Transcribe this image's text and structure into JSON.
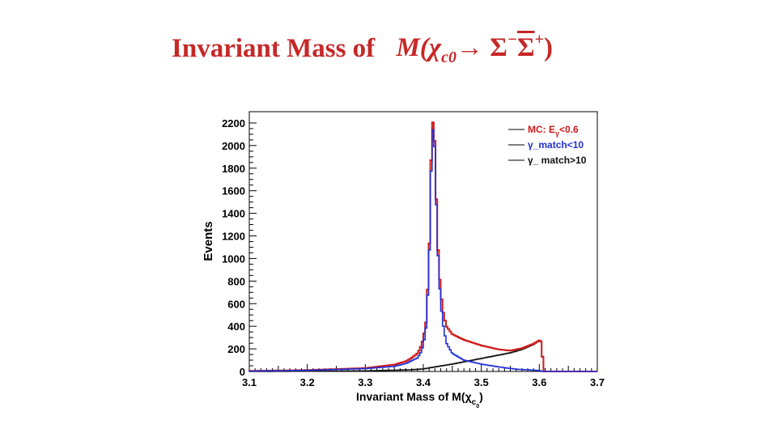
{
  "title": {
    "prefix": "Invariant  Mass of",
    "formula": {
      "M": "M",
      "open": "(",
      "chi": "χ",
      "sub_c": "c",
      "sub_0": "0",
      "arrow": "→ Σ",
      "minus": "−",
      "sigma_bar": "Σ",
      "plus": "+",
      "close": ")"
    }
  },
  "colors": {
    "title": "#c62828",
    "mc_red": "#d01c1c",
    "match_blue": "#1f2fd6",
    "unmatched_black": "#111111"
  },
  "chart_data": {
    "type": "line",
    "style": "step-histogram",
    "xlabel": "Invariant Mass of M(χ",
    "xlabel_sub": "c",
    "xlabel_subsub": "0",
    "xlabel_close": ")",
    "ylabel": "Events",
    "xlim": [
      3.1,
      3.7
    ],
    "ylim": [
      0,
      2300
    ],
    "xticks": [
      "3.1",
      "3.2",
      "3.3",
      "3.4",
      "3.5",
      "3.6",
      "3.7"
    ],
    "yticks": [
      "0",
      "200",
      "400",
      "600",
      "800",
      "1000",
      "1200",
      "1400",
      "1600",
      "1800",
      "2000",
      "2200"
    ],
    "legend": {
      "position": "top-right",
      "entries": [
        {
          "label": "MC:   E",
          "sub": "γ",
          "suffix": "<0.6",
          "color": "#d01c1c"
        },
        {
          "label": "γ_match<10",
          "color": "#1f2fd6"
        },
        {
          "label": "γ_ match>10",
          "color": "#111111"
        }
      ]
    },
    "series": [
      {
        "name": "MC: Eγ<0.6",
        "color": "#d01c1c",
        "points": [
          [
            3.1,
            5
          ],
          [
            3.2,
            12
          ],
          [
            3.3,
            30
          ],
          [
            3.35,
            60
          ],
          [
            3.37,
            90
          ],
          [
            3.38,
            120
          ],
          [
            3.39,
            160
          ],
          [
            3.395,
            210
          ],
          [
            3.4,
            290
          ],
          [
            3.405,
            450
          ],
          [
            3.41,
            1000
          ],
          [
            3.413,
            1800
          ],
          [
            3.416,
            2220
          ],
          [
            3.419,
            2130
          ],
          [
            3.422,
            1600
          ],
          [
            3.426,
            1000
          ],
          [
            3.43,
            700
          ],
          [
            3.435,
            500
          ],
          [
            3.44,
            400
          ],
          [
            3.45,
            330
          ],
          [
            3.47,
            280
          ],
          [
            3.5,
            230
          ],
          [
            3.53,
            195
          ],
          [
            3.55,
            185
          ],
          [
            3.57,
            205
          ],
          [
            3.59,
            245
          ],
          [
            3.6,
            275
          ],
          [
            3.605,
            260
          ],
          [
            3.606,
            0
          ],
          [
            3.7,
            0
          ]
        ]
      },
      {
        "name": "γ_match<10",
        "color": "#1f2fd6",
        "points": [
          [
            3.1,
            3
          ],
          [
            3.2,
            10
          ],
          [
            3.3,
            25
          ],
          [
            3.35,
            45
          ],
          [
            3.37,
            70
          ],
          [
            3.38,
            95
          ],
          [
            3.39,
            120
          ],
          [
            3.395,
            160
          ],
          [
            3.4,
            230
          ],
          [
            3.405,
            400
          ],
          [
            3.41,
            950
          ],
          [
            3.413,
            1700
          ],
          [
            3.416,
            2150
          ],
          [
            3.419,
            2080
          ],
          [
            3.422,
            1550
          ],
          [
            3.426,
            950
          ],
          [
            3.43,
            600
          ],
          [
            3.435,
            380
          ],
          [
            3.44,
            250
          ],
          [
            3.45,
            160
          ],
          [
            3.47,
            100
          ],
          [
            3.5,
            65
          ],
          [
            3.53,
            40
          ],
          [
            3.56,
            20
          ],
          [
            3.6,
            8
          ],
          [
            3.606,
            0
          ],
          [
            3.7,
            0
          ]
        ]
      },
      {
        "name": "γ_ match>10",
        "color": "#111111",
        "points": [
          [
            3.1,
            0
          ],
          [
            3.3,
            5
          ],
          [
            3.38,
            15
          ],
          [
            3.4,
            22
          ],
          [
            3.42,
            40
          ],
          [
            3.45,
            65
          ],
          [
            3.48,
            95
          ],
          [
            3.5,
            115
          ],
          [
            3.52,
            135
          ],
          [
            3.55,
            165
          ],
          [
            3.57,
            195
          ],
          [
            3.59,
            240
          ],
          [
            3.6,
            275
          ],
          [
            3.605,
            265
          ],
          [
            3.606,
            0
          ],
          [
            3.7,
            0
          ]
        ]
      }
    ]
  }
}
